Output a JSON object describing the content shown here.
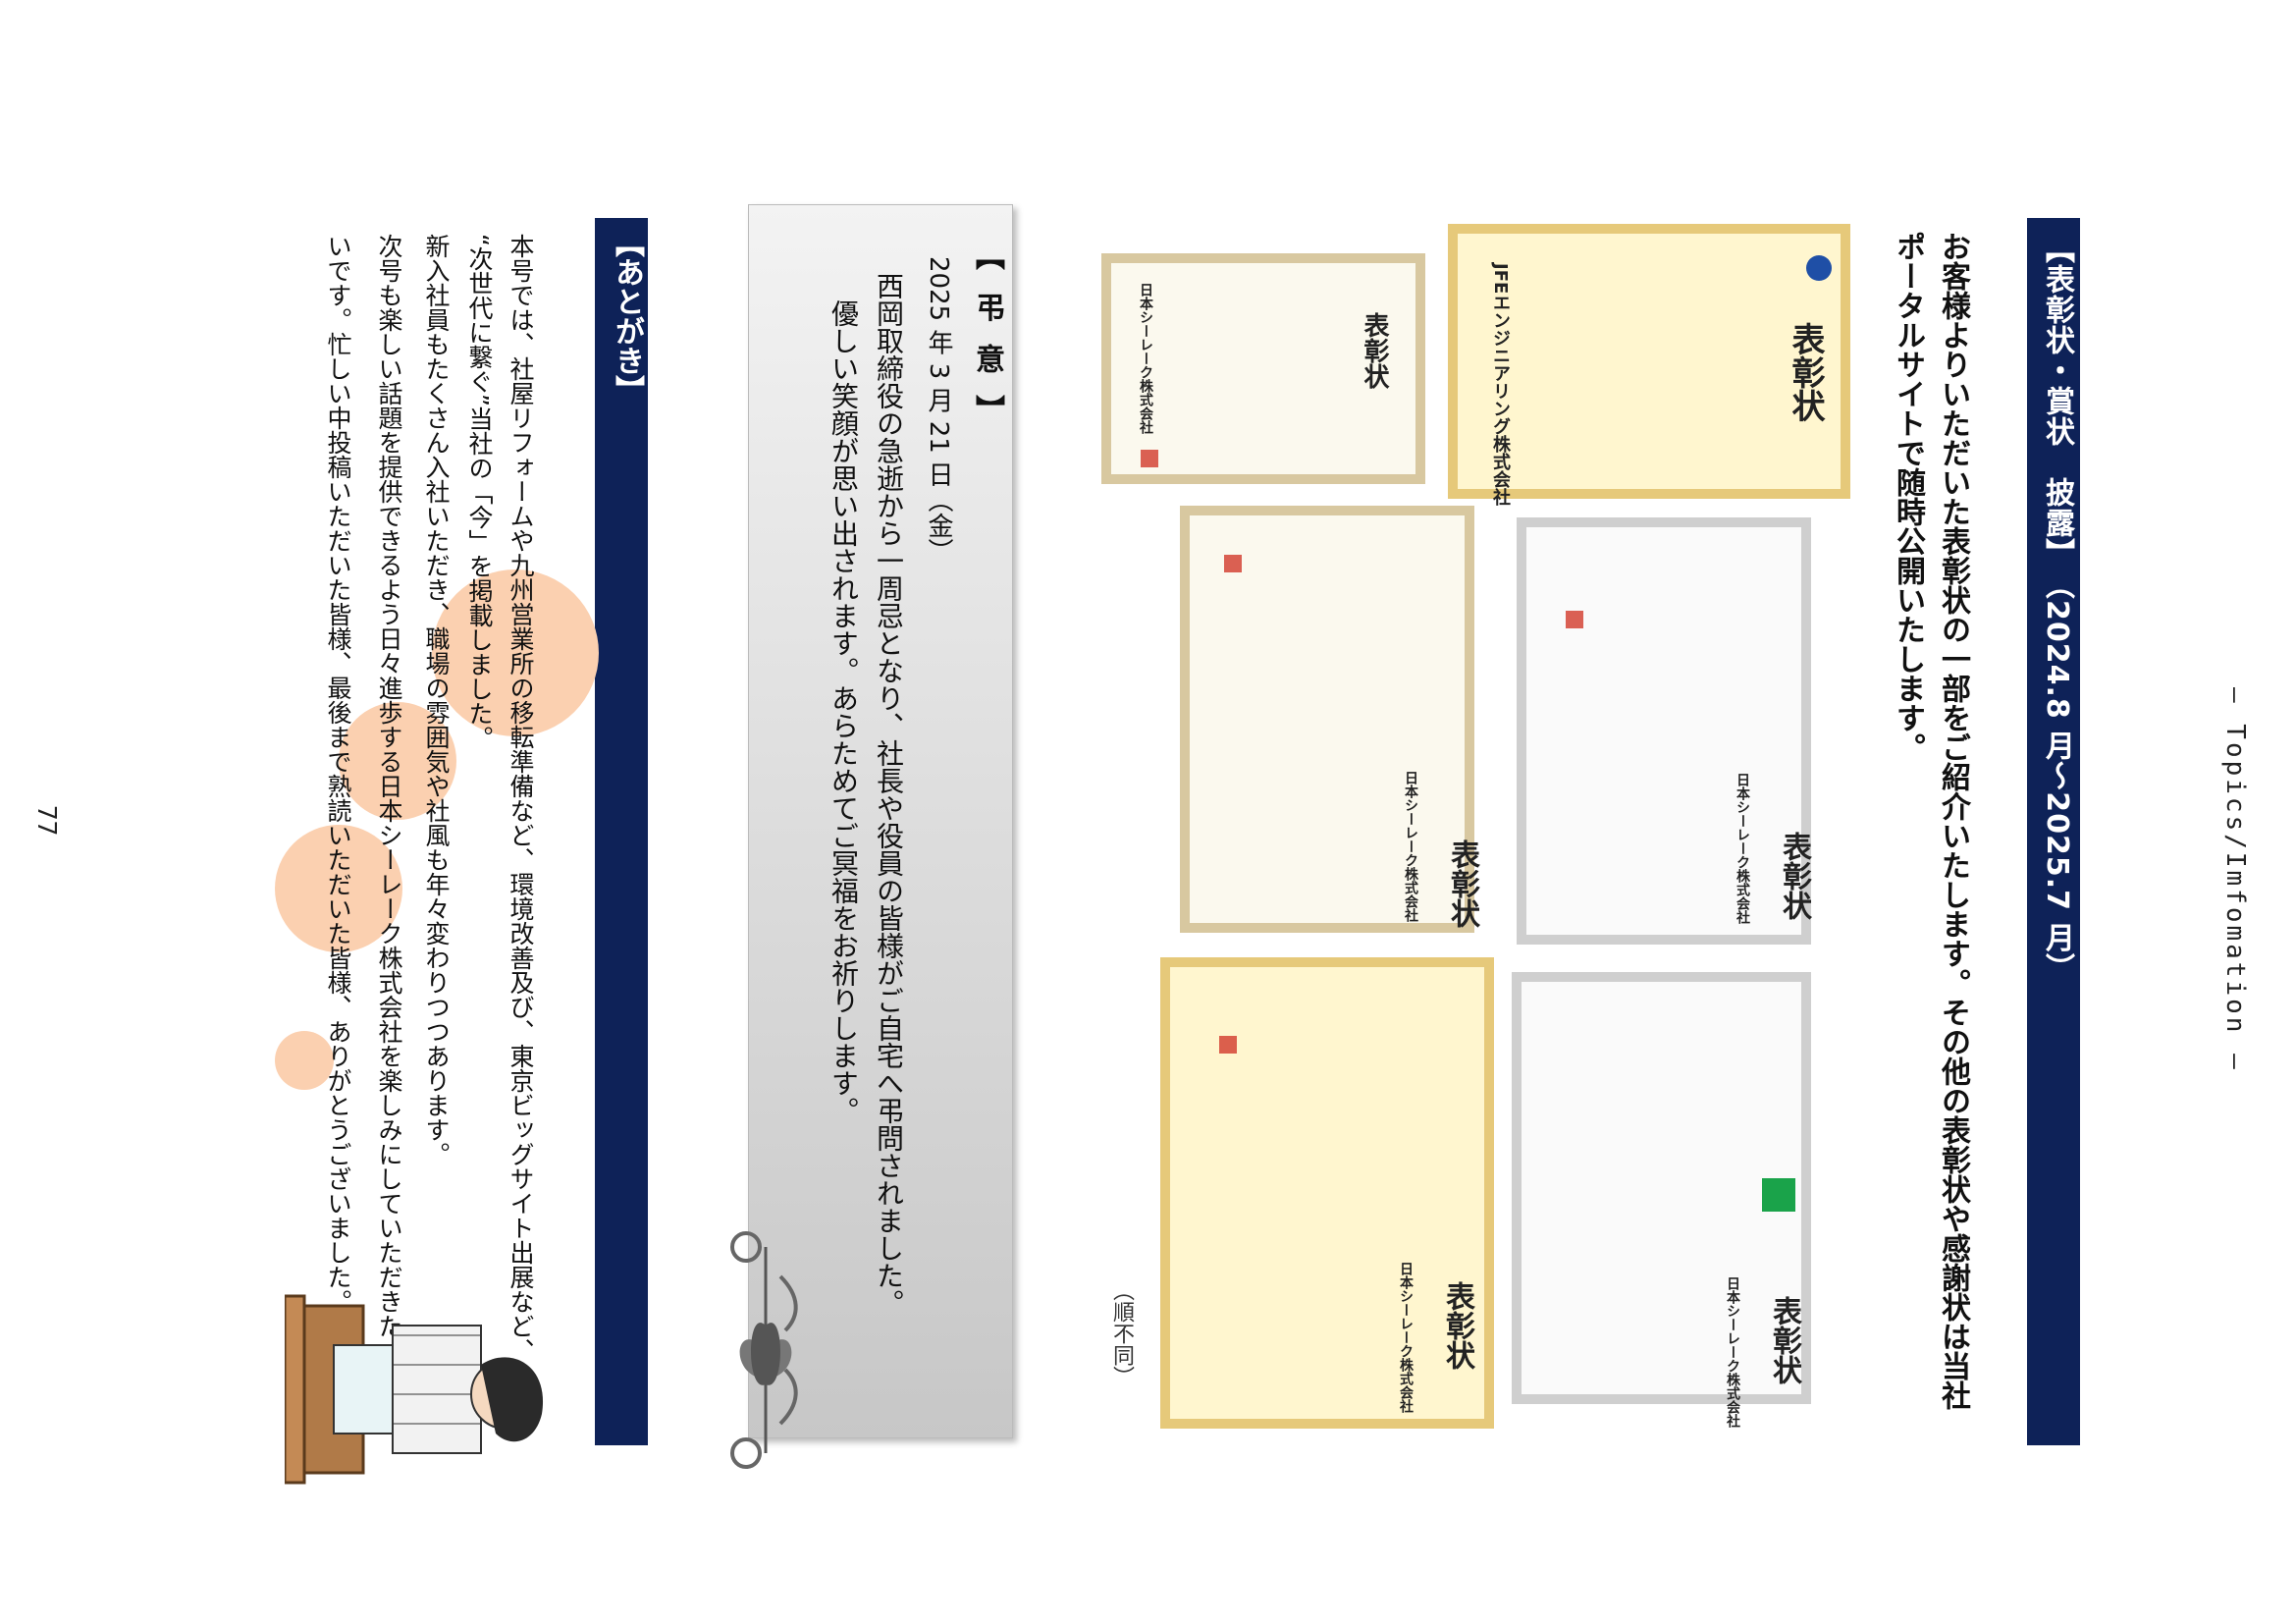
{
  "header": {
    "section_label": "— Topics/Imfomation —",
    "title": "【表彰状・賞状　披露】　（2024.8 月～2025.7 月）",
    "intro_line1": "お客様よりいただいた表彰状の一部をご紹介いたします。その他の表彰状や感謝状は当社",
    "intro_line2": "ポータルサイトで随時公開いたします。"
  },
  "certificates": [
    {
      "title": "表彰状",
      "org": "JFEエンジニアリング株式会社"
    },
    {
      "title": "表彰状",
      "org": "日本シーレーク株式会社"
    },
    {
      "title": "表彰状",
      "org": "日本シーレーク株式会社"
    },
    {
      "title": "表彰状",
      "org": "日本シーレーク株式会社"
    },
    {
      "title": "表彰状",
      "org": "日本シーレーク株式会社"
    },
    {
      "title": "表彰状",
      "org": "日本シーレーク株式会社"
    }
  ],
  "caption": "（順不同）",
  "condolence": {
    "title": "【 弔 意 】",
    "date": "2025 年 3 月 21 日（金）",
    "line1": "西岡取締役の急逝から一周忌となり、社長や役員の皆様がご自宅へ弔問されました。",
    "line2": "優しい笑顔が思い出されます。あらためてご冥福をお祈りします。"
  },
  "afterword": {
    "title": "【あとがき】",
    "line1": "本号では、社屋リフォームや九州営業所の移転準備など、環境改善及び、東京ビッグサイト出展など、",
    "line2": "“次世代に繋ぐ”当社の「今」を掲載しました。",
    "line3": "新入社員もたくさん入社いただき、職場の雰囲気や社風も年々変わりつつあります。",
    "line4": "次号も楽しい話題を提供できるよう日々進歩する日本シーレーク株式会社を楽しみにしていただきた",
    "line5": "いです。忙しい中投稿いただいた皆様、最後まで熟読いただいた皆様、ありがとうございました。"
  },
  "page_number": "77",
  "colors": {
    "navy": "#0e2258",
    "peach": "#fbd0b0",
    "gold": "#e6c97a"
  }
}
